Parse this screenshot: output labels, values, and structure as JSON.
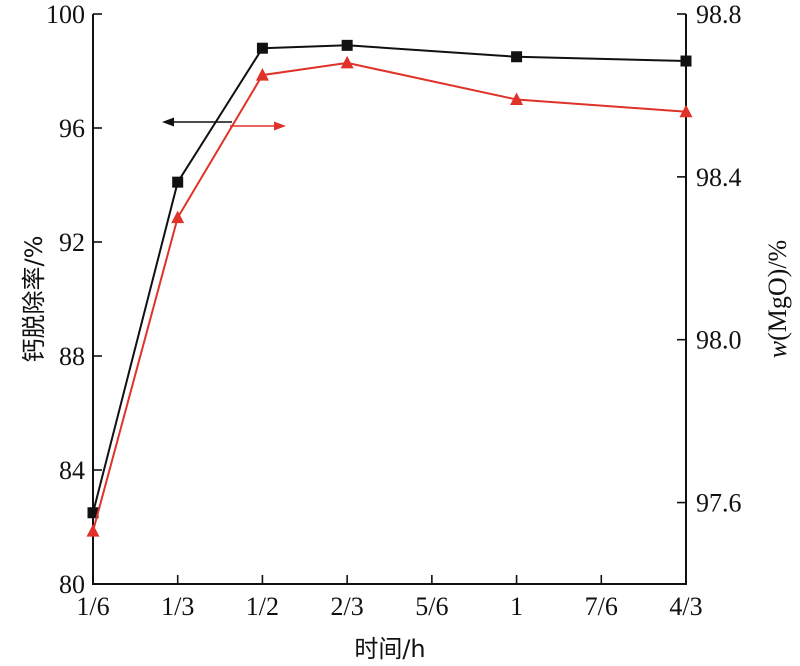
{
  "chart_data": {
    "type": "line",
    "x_tick_labels": [
      "1/6",
      "1/3",
      "1/2",
      "2/3",
      "5/6",
      "1",
      "7/6",
      "4/3"
    ],
    "xlim": [
      0.1667,
      1.3333
    ],
    "xlabel": "时间/h",
    "ylabel_left": "钙脱除率/%",
    "ylim_left": [
      80,
      100
    ],
    "yticks_left": [
      "80",
      "84",
      "88",
      "92",
      "96",
      "100"
    ],
    "ylabel_right_italic": "w",
    "ylabel_right_rest": "(MgO)/%",
    "ylim_right": [
      97.4,
      98.8
    ],
    "yticks_right": [
      "97.6",
      "98.0",
      "98.4",
      "98.8"
    ],
    "series": [
      {
        "axis": "left",
        "color": "#111111",
        "marker": "square",
        "x": [
          0.1667,
          0.3333,
          0.5,
          0.6667,
          1.0,
          1.3333
        ],
        "values": [
          82.5,
          94.1,
          98.8,
          98.9,
          98.5,
          98.35
        ]
      },
      {
        "axis": "right",
        "color": "#e03228",
        "marker": "triangle",
        "x": [
          0.1667,
          0.3333,
          0.5,
          0.6667,
          1.0,
          1.3333
        ],
        "values": [
          97.53,
          98.3,
          98.65,
          98.68,
          98.59,
          98.56
        ]
      }
    ],
    "legend_arrows": [
      {
        "direction": "left",
        "color": "#111111"
      },
      {
        "direction": "right",
        "color": "#e03228"
      }
    ],
    "grid": false
  }
}
